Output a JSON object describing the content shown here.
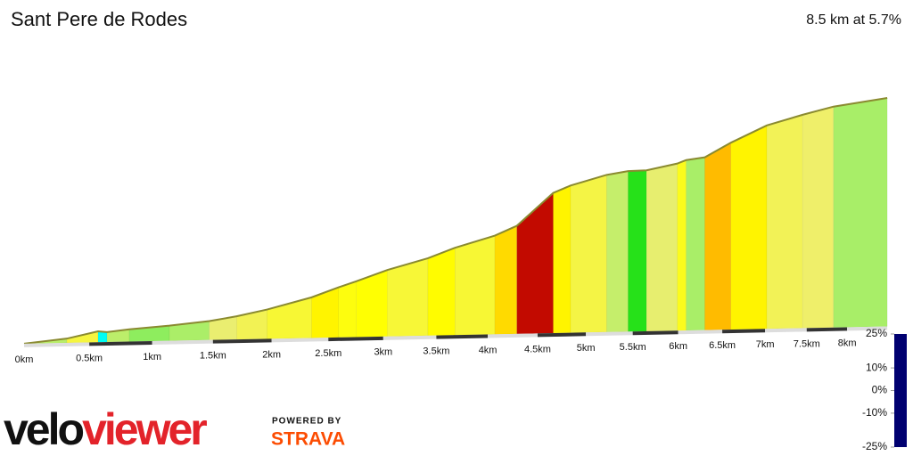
{
  "chart_data": {
    "type": "profile",
    "title": "Sant Pere de Rodes",
    "subtitle": "8.5 km at 5.7%",
    "km": [
      0,
      0.326,
      0.569,
      0.639,
      0.816,
      1.14,
      1.47,
      1.7,
      1.96,
      2.35,
      2.59,
      2.75,
      3.04,
      3.42,
      3.68,
      4.07,
      4.29,
      4.66,
      4.84,
      5.22,
      5.45,
      5.65,
      5.99,
      6.09,
      6.3,
      6.6,
      7.02,
      7.45,
      7.83,
      8.51
    ],
    "elevation": [
      0,
      9,
      23,
      21,
      26,
      32,
      40,
      49,
      62,
      86,
      106,
      118,
      141,
      164,
      185,
      209,
      229,
      297,
      312,
      333,
      340,
      341,
      354,
      361,
      366,
      396,
      431,
      452,
      468,
      484
    ],
    "ylim": [
      0,
      500
    ],
    "xticks": [
      {
        "value": 0,
        "label": "0km"
      },
      {
        "value": 0.5,
        "label": "0.5km"
      },
      {
        "value": 1,
        "label": "1km"
      },
      {
        "value": 1.5,
        "label": "1.5km"
      },
      {
        "value": 2,
        "label": "2km"
      },
      {
        "value": 2.5,
        "label": "2.5km"
      },
      {
        "value": 3,
        "label": "3km"
      },
      {
        "value": 3.5,
        "label": "3.5km"
      },
      {
        "value": 4,
        "label": "4km"
      },
      {
        "value": 4.5,
        "label": "4.5km"
      },
      {
        "value": 5,
        "label": "5km"
      },
      {
        "value": 5.5,
        "label": "5.5km"
      },
      {
        "value": 6,
        "label": "6km"
      },
      {
        "value": 6.5,
        "label": "6.5km"
      },
      {
        "value": 7,
        "label": "7km"
      },
      {
        "value": 7.5,
        "label": "7.5km"
      },
      {
        "value": 8,
        "label": "8km"
      }
    ],
    "clim": [
      -25,
      25
    ],
    "colorbar_ticks": [
      {
        "value": 25,
        "label": "25%"
      },
      {
        "value": 10,
        "label": "10%"
      },
      {
        "value": 0,
        "label": "0%"
      },
      {
        "value": -10,
        "label": "-10%"
      },
      {
        "value": -25,
        "label": "-25%"
      }
    ],
    "colorscale": [
      {
        "value": -25,
        "color": "#000070"
      },
      {
        "value": -10,
        "color": "#0000ff"
      },
      {
        "value": -3,
        "color": "#00ffff"
      },
      {
        "value": 0,
        "color": "#00dd00"
      },
      {
        "value": 2,
        "color": "#99ee66"
      },
      {
        "value": 4,
        "color": "#eeee70"
      },
      {
        "value": 8,
        "color": "#ffff00"
      },
      {
        "value": 11,
        "color": "#ff9900"
      },
      {
        "value": 14,
        "color": "#ff1100"
      },
      {
        "value": 25,
        "color": "#660000"
      }
    ]
  },
  "branding": {
    "logo_dark": "velo",
    "logo_red": "viewer",
    "powered_by": "POWERED BY",
    "strava": "STRAVA"
  }
}
